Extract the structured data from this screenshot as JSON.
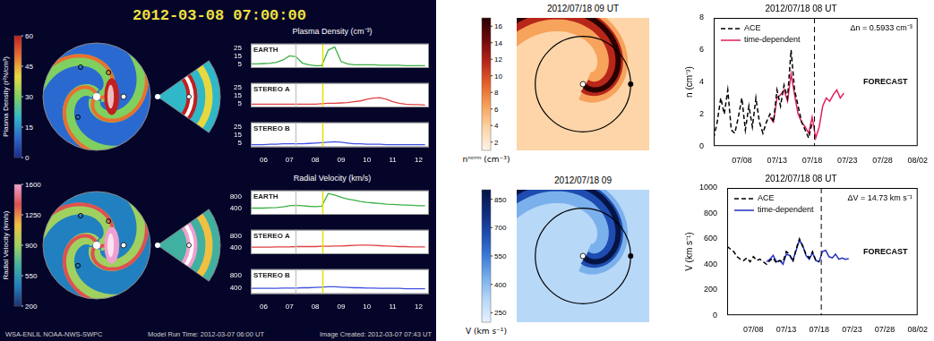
{
  "header": {
    "title": "2012-03-08 07:00:00",
    "headers": [
      "Plasma Density (cm⁻³)",
      "Radial Velocity (km/s)"
    ],
    "footer": [
      "WSA-ENLIL NOAA-NWS-SWPC",
      "Model Run Time: 2012-03-07 06:00 UT",
      "Image Created: 2012-03-07 07:43 UT"
    ]
  },
  "maps": [
    {
      "type": "map",
      "colorbar_label": "Plasma Density (r²N/cm³)",
      "colorbar_range": [
        0,
        60
      ],
      "colorbar_ticks": [
        0,
        15,
        30,
        45,
        60
      ]
    },
    {
      "type": "map",
      "colorbar_label": "Radial Velocity (km/s)",
      "colorbar_range": [
        200,
        1600
      ],
      "colorbar_ticks": [
        200,
        550,
        900,
        1250,
        1600
      ]
    },
    {
      "type": "map",
      "title": "2012/07/18 09 UT",
      "colorbar_label": "nⁿᵒʳᵐ (cm⁻³)",
      "colorbar_range": [
        1,
        17
      ],
      "colorbar_ticks": [
        2,
        4,
        6,
        8,
        10,
        12,
        14,
        16
      ]
    },
    {
      "type": "map",
      "title": "2012/07/18 09",
      "colorbar_label": "V (km s⁻¹)",
      "colorbar_range": [
        200,
        900
      ],
      "colorbar_ticks": [
        250,
        400,
        550,
        700,
        850
      ]
    }
  ],
  "chart_data": [
    {
      "type": "line",
      "title": "EARTH",
      "x": [
        5.5,
        5.75,
        6,
        6.25,
        6.5,
        6.75,
        7,
        7.25,
        7.5,
        7.75,
        8,
        8.25,
        8.5,
        8.75,
        9,
        9.25,
        9.5,
        9.75,
        10,
        10.25,
        10.5,
        10.75,
        11,
        11.25,
        11.5,
        11.75,
        12,
        12.25
      ],
      "series": [
        {
          "color": "#3cb043",
          "values": [
            5,
            5,
            5.5,
            6,
            7,
            10,
            15,
            14,
            6,
            4,
            3,
            3,
            22,
            26,
            8,
            5,
            4,
            4,
            4,
            4,
            3.5,
            3.5,
            3.5,
            3.5,
            3,
            3,
            3,
            3
          ]
        }
      ],
      "xlim": [
        5.5,
        12.4
      ],
      "xticks": [
        {
          "value": 6,
          "label": "06"
        },
        {
          "value": 7,
          "label": "07"
        },
        {
          "value": 8,
          "label": "08"
        },
        {
          "value": 9,
          "label": "09"
        },
        10,
        11,
        12
      ],
      "ylim": [
        0,
        30
      ],
      "yticks": [
        5,
        15,
        25
      ],
      "tick_labels": "y",
      "grid": false,
      "vlines": [
        {
          "x": 7.25,
          "color": "#c8c8c8"
        },
        {
          "x": 8.29,
          "color": "#e8e000"
        }
      ]
    },
    {
      "type": "line",
      "title": "STEREO A",
      "x": [
        5.5,
        5.75,
        6,
        6.25,
        6.5,
        6.75,
        7,
        7.25,
        7.5,
        7.75,
        8,
        8.25,
        8.5,
        8.75,
        9,
        9.25,
        9.5,
        9.75,
        10,
        10.25,
        10.5,
        10.75,
        11,
        11.25,
        11.5,
        11.75,
        12,
        12.25
      ],
      "series": [
        {
          "color": "#e04040",
          "values": [
            4,
            4,
            4,
            4,
            4,
            4,
            4,
            4,
            4,
            4,
            4,
            4.5,
            5,
            5,
            5.5,
            6,
            7,
            8,
            10,
            11.5,
            12,
            10,
            7,
            5,
            4,
            3.5,
            3.5,
            3
          ]
        }
      ],
      "xlim": [
        5.5,
        12.4
      ],
      "xticks": [
        {
          "value": 6,
          "label": "06"
        },
        {
          "value": 7,
          "label": "07"
        },
        {
          "value": 8,
          "label": "08"
        },
        {
          "value": 9,
          "label": "09"
        },
        10,
        11,
        12
      ],
      "ylim": [
        0,
        30
      ],
      "yticks": [
        5,
        15,
        25
      ],
      "tick_labels": "y",
      "grid": false,
      "vlines": [
        {
          "x": 7.25,
          "color": "#c8c8c8"
        },
        {
          "x": 8.29,
          "color": "#e8e000"
        }
      ]
    },
    {
      "type": "line",
      "title": "STEREO B",
      "x": [
        5.5,
        5.75,
        6,
        6.25,
        6.5,
        6.75,
        7,
        7.25,
        7.5,
        7.75,
        8,
        8.25,
        8.5,
        8.75,
        9,
        9.25,
        9.5,
        9.75,
        10,
        10.25,
        10.5,
        10.75,
        11,
        11.25,
        11.5,
        11.75,
        12,
        12.25
      ],
      "series": [
        {
          "color": "#4050e0",
          "values": [
            3,
            3,
            3,
            3.5,
            3.5,
            4,
            4,
            4,
            4,
            4.5,
            5,
            5.5,
            6,
            6.5,
            6,
            5,
            4,
            4,
            3.5,
            3.5,
            3.5,
            3,
            3,
            3,
            3,
            3,
            3,
            3
          ]
        }
      ],
      "xlim": [
        5.5,
        12.4
      ],
      "xticks": [
        {
          "value": 6,
          "label": "06"
        },
        {
          "value": 7,
          "label": "07"
        },
        {
          "value": 8,
          "label": "08"
        },
        {
          "value": 9,
          "label": "09"
        },
        10,
        11,
        12
      ],
      "ylim": [
        0,
        30
      ],
      "yticks": [
        5,
        15,
        25
      ],
      "tick_labels": true,
      "grid": false,
      "vlines": [
        {
          "x": 7.25,
          "color": "#c8c8c8"
        },
        {
          "x": 8.29,
          "color": "#e8e000"
        }
      ]
    },
    {
      "type": "line",
      "title": "EARTH",
      "x": [
        5.5,
        5.75,
        6,
        6.25,
        6.5,
        6.75,
        7,
        7.25,
        7.5,
        7.75,
        8,
        8.25,
        8.5,
        8.75,
        9,
        9.25,
        9.5,
        9.75,
        10,
        10.25,
        10.5,
        10.75,
        11,
        11.25,
        11.5,
        11.75,
        12,
        12.25
      ],
      "series": [
        {
          "color": "#3cb043",
          "values": [
            420,
            420,
            420,
            430,
            440,
            460,
            500,
            510,
            500,
            480,
            470,
            480,
            900,
            850,
            780,
            720,
            680,
            640,
            610,
            590,
            570,
            550,
            540,
            530,
            520,
            510,
            500,
            500
          ]
        }
      ],
      "xlim": [
        5.5,
        12.4
      ],
      "xticks": [
        {
          "value": 6,
          "label": "06"
        },
        {
          "value": 7,
          "label": "07"
        },
        {
          "value": 8,
          "label": "08"
        },
        {
          "value": 9,
          "label": "09"
        },
        10,
        11,
        12
      ],
      "ylim": [
        200,
        1000
      ],
      "yticks": [
        400,
        800
      ],
      "tick_labels": "y",
      "grid": false,
      "vlines": [
        {
          "x": 7.25,
          "color": "#c8c8c8"
        },
        {
          "x": 8.29,
          "color": "#e8e000"
        }
      ]
    },
    {
      "type": "line",
      "title": "STEREO A",
      "x": [
        5.5,
        5.75,
        6,
        6.25,
        6.5,
        6.75,
        7,
        7.25,
        7.5,
        7.75,
        8,
        8.25,
        8.5,
        8.75,
        9,
        9.25,
        9.5,
        9.75,
        10,
        10.25,
        10.5,
        10.75,
        11,
        11.25,
        11.5,
        11.75,
        12,
        12.25
      ],
      "series": [
        {
          "color": "#e04040",
          "values": [
            430,
            430,
            430,
            430,
            440,
            440,
            440,
            450,
            450,
            450,
            450,
            460,
            460,
            470,
            470,
            480,
            490,
            500,
            500,
            490,
            480,
            470,
            460,
            450,
            450,
            440,
            440,
            440
          ]
        }
      ],
      "xlim": [
        5.5,
        12.4
      ],
      "xticks": [
        {
          "value": 6,
          "label": "06"
        },
        {
          "value": 7,
          "label": "07"
        },
        {
          "value": 8,
          "label": "08"
        },
        {
          "value": 9,
          "label": "09"
        },
        10,
        11,
        12
      ],
      "ylim": [
        200,
        1000
      ],
      "yticks": [
        400,
        800
      ],
      "tick_labels": "y",
      "grid": false,
      "vlines": [
        {
          "x": 7.25,
          "color": "#c8c8c8"
        },
        {
          "x": 8.29,
          "color": "#e8e000"
        }
      ]
    },
    {
      "type": "line",
      "title": "STEREO B",
      "x": [
        5.5,
        5.75,
        6,
        6.25,
        6.5,
        6.75,
        7,
        7.25,
        7.5,
        7.75,
        8,
        8.25,
        8.5,
        8.75,
        9,
        9.25,
        9.5,
        9.75,
        10,
        10.25,
        10.5,
        10.75,
        11,
        11.25,
        11.5,
        11.75,
        12,
        12.25
      ],
      "series": [
        {
          "color": "#4050e0",
          "values": [
            380,
            380,
            380,
            380,
            380,
            390,
            390,
            390,
            400,
            400,
            410,
            420,
            430,
            430,
            420,
            410,
            400,
            400,
            390,
            390,
            380,
            380,
            380,
            380,
            370,
            370,
            370,
            370
          ]
        }
      ],
      "xlim": [
        5.5,
        12.4
      ],
      "xticks": [
        {
          "value": 6,
          "label": "06"
        },
        {
          "value": 7,
          "label": "07"
        },
        {
          "value": 8,
          "label": "08"
        },
        {
          "value": 9,
          "label": "09"
        },
        10,
        11,
        12
      ],
      "ylim": [
        200,
        1000
      ],
      "yticks": [
        400,
        800
      ],
      "tick_labels": true,
      "grid": false,
      "vlines": [
        {
          "x": 7.25,
          "color": "#c8c8c8"
        },
        {
          "x": 8.29,
          "color": "#e8e000"
        }
      ]
    },
    {
      "type": "line",
      "title": "2012/07/18 08 UT",
      "ylabel": "n (cm⁻³)",
      "x": [
        4,
        4.5,
        5,
        5.5,
        6,
        6.5,
        7,
        7.5,
        8,
        8.5,
        9,
        9.5,
        10,
        10.5,
        11,
        11.5,
        12,
        12.5,
        13,
        13.5,
        14,
        14.5,
        15,
        15.5,
        16,
        16.5,
        17,
        17.5,
        18,
        18.5,
        19,
        19.5,
        20,
        20.5,
        21,
        21.5,
        22,
        22.5
      ],
      "series": [
        {
          "name": "ACE",
          "color": "#000000",
          "line_style": "dashed",
          "values": [
            0.5,
            1.5,
            3,
            2,
            3.5,
            1,
            0.8,
            1.8,
            3,
            1,
            2.5,
            1.2,
            3,
            1.5,
            0.8,
            1.5,
            2,
            1.5,
            3.5,
            2.5,
            3.8,
            3,
            6,
            3.5,
            2.5,
            1.5,
            1,
            0.5,
            1.5,
            null,
            null,
            null,
            null,
            null,
            null,
            null,
            null,
            null
          ]
        },
        {
          "name": "time-dependent",
          "color": "#e0205a",
          "line_style": "solid",
          "values": [
            null,
            null,
            null,
            null,
            null,
            null,
            null,
            null,
            null,
            null,
            null,
            null,
            null,
            null,
            null,
            null,
            1.8,
            1.5,
            3,
            3.2,
            3.5,
            2.8,
            4.5,
            3.2,
            2,
            1.5,
            1.2,
            0.8,
            1.8,
            0.5,
            1.2,
            2.5,
            3,
            2.8,
            3.2,
            3.5,
            3,
            3.3
          ]
        }
      ],
      "xlim": [
        4,
        33
      ],
      "xticks": [
        {
          "value": 8,
          "label": "07/08"
        },
        {
          "value": 13,
          "label": "07/13"
        },
        {
          "value": 18,
          "label": "07/18"
        },
        {
          "value": 23,
          "label": "07/23"
        },
        {
          "value": 28,
          "label": "07/28"
        },
        {
          "value": 33,
          "label": "08/02"
        }
      ],
      "ylim": [
        0,
        8
      ],
      "yticks": [
        0,
        2,
        4,
        6,
        8
      ],
      "tick_labels": true,
      "grid": false,
      "legend": "upper left",
      "vlines": [
        {
          "x": 18.33,
          "color": "#000000",
          "line_style": "dashed"
        }
      ],
      "annotations": [
        "Δn = 0.5933 cm⁻³",
        "FORECAST"
      ]
    },
    {
      "type": "line",
      "title": "2012/07/18 08 UT",
      "ylabel": "V (km s⁻¹)",
      "x": [
        4,
        4.5,
        5,
        5.5,
        6,
        6.5,
        7,
        7.5,
        8,
        8.5,
        9,
        9.5,
        10,
        10.5,
        11,
        11.5,
        12,
        12.5,
        13,
        13.5,
        14,
        14.5,
        15,
        15.5,
        16,
        16.5,
        17,
        17.5,
        18,
        18.5,
        19,
        19.5,
        20,
        20.5,
        21,
        21.5,
        22,
        22.5
      ],
      "series": [
        {
          "name": "ACE",
          "color": "#000000",
          "line_style": "dashed",
          "values": [
            540,
            520,
            500,
            460,
            440,
            430,
            450,
            420,
            460,
            430,
            440,
            420,
            400,
            430,
            450,
            410,
            430,
            420,
            500,
            480,
            420,
            520,
            600,
            540,
            480,
            450,
            500,
            430,
            420,
            null,
            null,
            null,
            null,
            null,
            null,
            null,
            null,
            null
          ]
        },
        {
          "name": "time-dependent",
          "color": "#2030c0",
          "line_style": "solid",
          "values": [
            null,
            null,
            null,
            null,
            null,
            null,
            null,
            null,
            null,
            null,
            null,
            null,
            420,
            440,
            470,
            420,
            430,
            400,
            480,
            470,
            430,
            510,
            590,
            550,
            470,
            440,
            490,
            430,
            420,
            500,
            510,
            460,
            450,
            480,
            440,
            450,
            440,
            445
          ]
        }
      ],
      "xlim": [
        4,
        33
      ],
      "xticks": [
        {
          "value": 8,
          "label": "07/08"
        },
        {
          "value": 13,
          "label": "07/13"
        },
        {
          "value": 18,
          "label": "07/18"
        },
        {
          "value": 23,
          "label": "07/23"
        },
        {
          "value": 28,
          "label": "07/28"
        },
        {
          "value": 33,
          "label": "08/02"
        }
      ],
      "ylim": [
        0,
        1000
      ],
      "yticks": [
        0,
        200,
        400,
        600,
        800,
        1000
      ],
      "tick_labels": true,
      "grid": false,
      "legend": "upper left",
      "vlines": [
        {
          "x": 18.33,
          "color": "#000000",
          "line_style": "dashed"
        }
      ],
      "annotations": [
        "ΔV = 14.73 km s⁻¹",
        "FORECAST"
      ]
    }
  ]
}
